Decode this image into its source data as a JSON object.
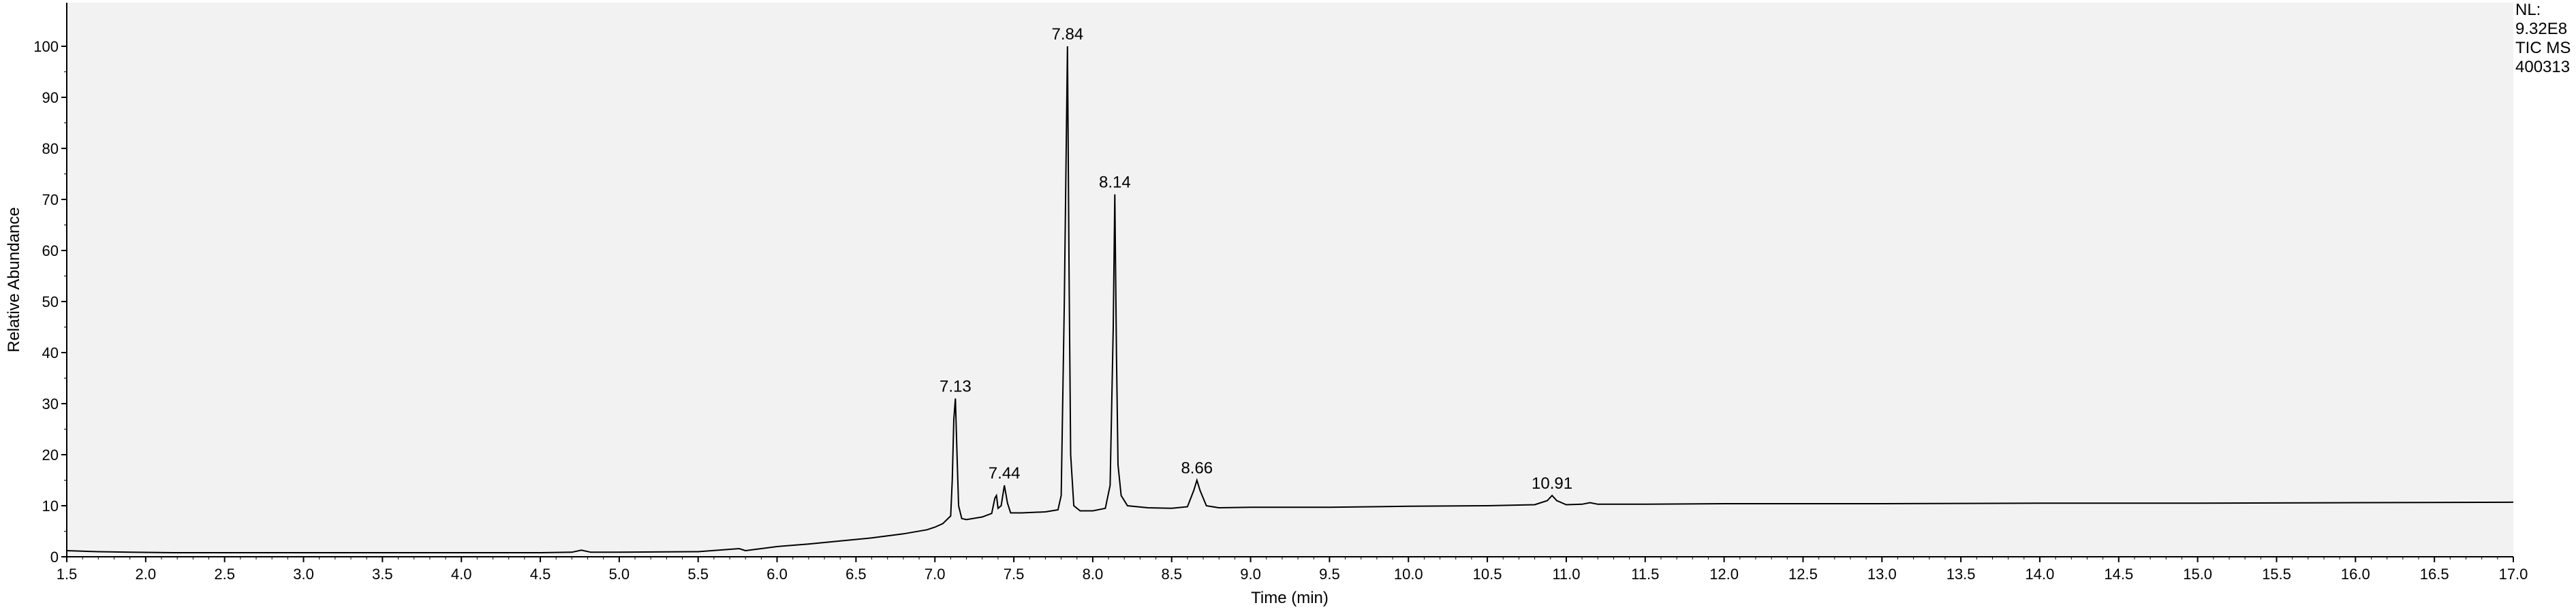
{
  "chart_data": {
    "type": "line",
    "xlabel": "Time (min)",
    "ylabel": "Relative Abundance",
    "xlim": [
      1.5,
      17.0
    ],
    "ylim": [
      0,
      105
    ],
    "x_ticks": [
      "1.5",
      "2.0",
      "2.5",
      "3.0",
      "3.5",
      "4.0",
      "4.5",
      "5.0",
      "5.5",
      "6.0",
      "6.5",
      "7.0",
      "7.5",
      "8.0",
      "8.5",
      "9.0",
      "9.5",
      "10.0",
      "10.5",
      "11.0",
      "11.5",
      "12.0",
      "12.5",
      "13.0",
      "13.5",
      "14.0",
      "14.5",
      "15.0",
      "15.5",
      "16.0",
      "16.5",
      "17.0"
    ],
    "y_ticks": [
      "0",
      "10",
      "20",
      "30",
      "40",
      "50",
      "60",
      "70",
      "80",
      "90",
      "100"
    ],
    "grid": false,
    "plot_background": "#f2f2f2",
    "line_color": "#000000",
    "info_labels": [
      "NL:",
      "9.32E8",
      "TIC MS",
      "400313"
    ],
    "peaks": [
      {
        "label": "7.13",
        "x": 7.13,
        "y": 31
      },
      {
        "label": "7.44",
        "x": 7.44,
        "y": 14
      },
      {
        "label": "7.84",
        "x": 7.84,
        "y": 100
      },
      {
        "label": "8.14",
        "x": 8.14,
        "y": 71
      },
      {
        "label": "8.66",
        "x": 8.66,
        "y": 15
      },
      {
        "label": "10.91",
        "x": 10.91,
        "y": 12
      }
    ],
    "series": [
      {
        "x": [
          1.5,
          1.7,
          1.9,
          2.2,
          2.6,
          3.0,
          3.5,
          4.0,
          4.3,
          4.5,
          4.7,
          4.76,
          4.82,
          5.0,
          5.5,
          5.76,
          5.8,
          6.0,
          6.2,
          6.4,
          6.6,
          6.8,
          6.95,
          7.0,
          7.05,
          7.1,
          7.11,
          7.12,
          7.13,
          7.14,
          7.15,
          7.17,
          7.2,
          7.3,
          7.36,
          7.38,
          7.39,
          7.4,
          7.42,
          7.44,
          7.46,
          7.48,
          7.55,
          7.7,
          7.78,
          7.8,
          7.82,
          7.84,
          7.85,
          7.86,
          7.88,
          7.92,
          8.0,
          8.08,
          8.11,
          8.13,
          8.14,
          8.15,
          8.16,
          8.18,
          8.22,
          8.35,
          8.5,
          8.6,
          8.64,
          8.66,
          8.68,
          8.72,
          8.8,
          9.0,
          9.5,
          10.0,
          10.5,
          10.8,
          10.88,
          10.91,
          10.94,
          11.0,
          11.1,
          11.15,
          11.2,
          11.5,
          12.0,
          13.0,
          14.0,
          15.0,
          16.0,
          17.0
        ],
        "y": [
          1.2,
          1.0,
          0.9,
          0.8,
          0.8,
          0.8,
          0.8,
          0.8,
          0.8,
          0.8,
          0.9,
          1.3,
          0.9,
          0.9,
          1.0,
          1.6,
          1.2,
          2.0,
          2.5,
          3.1,
          3.7,
          4.5,
          5.3,
          5.8,
          6.5,
          8.0,
          15.0,
          27.0,
          31.0,
          20.0,
          10.0,
          7.5,
          7.3,
          7.8,
          8.5,
          11.5,
          12.0,
          9.5,
          10.0,
          14.0,
          10.5,
          8.6,
          8.6,
          8.8,
          9.2,
          12.0,
          50.0,
          100.0,
          55.0,
          20.0,
          10.0,
          9.0,
          9.0,
          9.5,
          14.0,
          45.0,
          71.0,
          40.0,
          18.0,
          12.0,
          10.0,
          9.6,
          9.5,
          9.8,
          13.0,
          15.0,
          13.0,
          10.0,
          9.6,
          9.7,
          9.7,
          9.9,
          10.0,
          10.2,
          11.0,
          12.0,
          11.0,
          10.2,
          10.3,
          10.6,
          10.3,
          10.3,
          10.4,
          10.4,
          10.5,
          10.5,
          10.6,
          10.7
        ]
      }
    ]
  }
}
